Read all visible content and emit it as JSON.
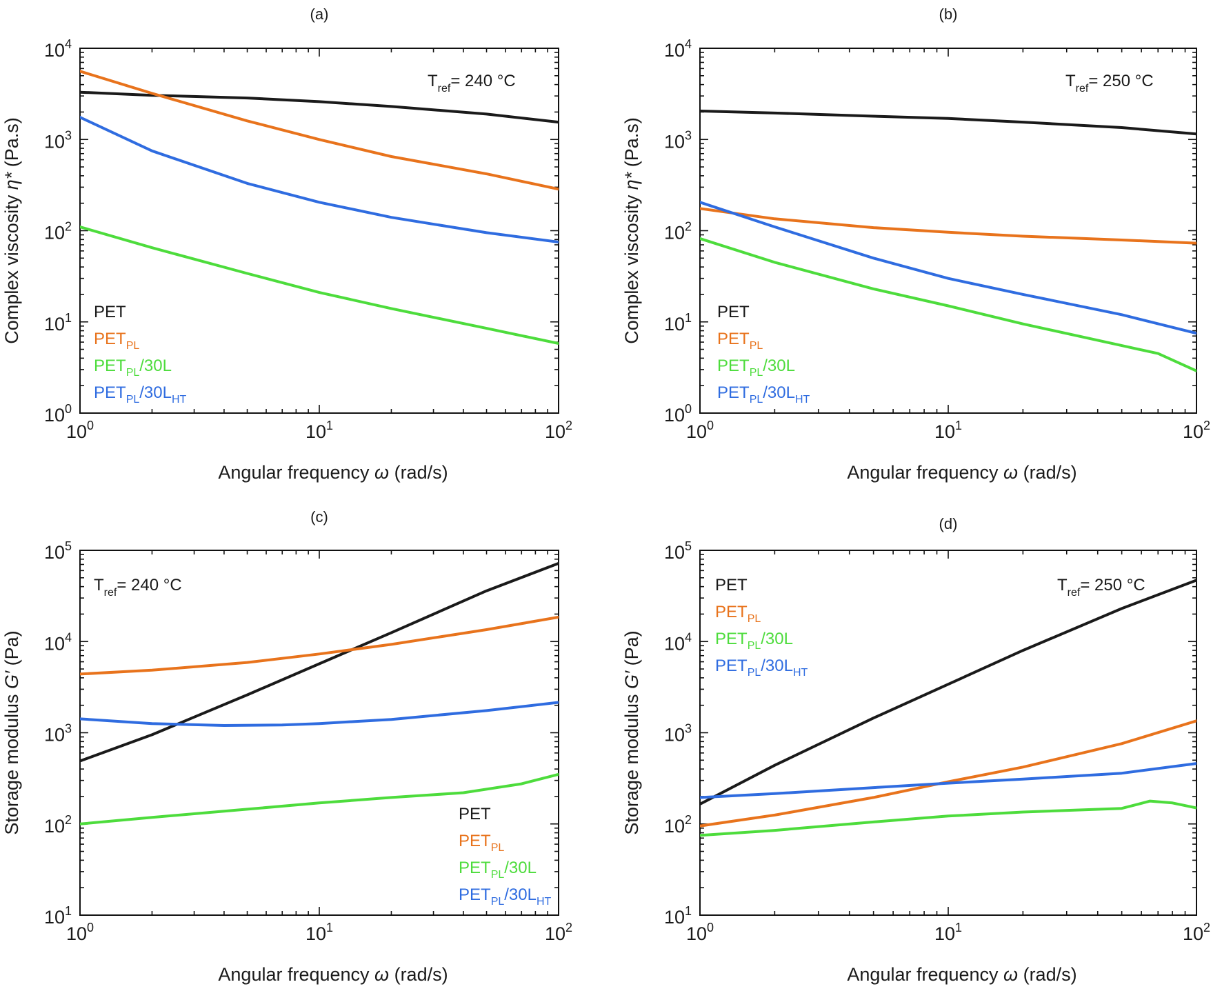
{
  "colors": {
    "PET": "#1a1a1a",
    "PET_PL": "#e8731c",
    "PET_PL_30L": "#4ddc3c",
    "PET_PL_30L_HT": "#2f6ce0"
  },
  "chart_data": [
    {
      "type": "line",
      "panel_label": "(a)",
      "xlabel": "Angular frequency",
      "xlabel_symbol": "ω",
      "xlabel_unit": "(rad/s)",
      "ylabel": "Complex viscosity",
      "ylabel_symbol": "η*",
      "ylabel_unit": "(Pa.s)",
      "x_scale": "log",
      "y_scale": "log",
      "xlim": [
        1,
        100
      ],
      "ylim": [
        1,
        10000
      ],
      "x_ticks": [
        {
          "base": "10",
          "exp": "0"
        },
        {
          "base": "10",
          "exp": "1"
        },
        {
          "base": "10",
          "exp": "2"
        }
      ],
      "y_ticks": [
        {
          "base": "10",
          "exp": "0"
        },
        {
          "base": "10",
          "exp": "1"
        },
        {
          "base": "10",
          "exp": "2"
        },
        {
          "base": "10",
          "exp": "3"
        },
        {
          "base": "10",
          "exp": "4"
        }
      ],
      "tref": {
        "label": "T",
        "sub": "ref",
        "value": "= 240 °C"
      },
      "legend_position": "bottom-left",
      "series": [
        {
          "name": "PET",
          "name_sub": "",
          "name_tail": "",
          "name_tail_sub": "",
          "color_key": "PET",
          "x": [
            1,
            2,
            5,
            10,
            20,
            50,
            100
          ],
          "y": [
            3300,
            3050,
            2850,
            2600,
            2300,
            1900,
            1550
          ]
        },
        {
          "name": "PET",
          "name_sub": "PL",
          "name_tail": "",
          "name_tail_sub": "",
          "color_key": "PET_PL",
          "x": [
            1,
            2,
            5,
            10,
            20,
            50,
            100
          ],
          "y": [
            5600,
            3200,
            1600,
            1000,
            650,
            420,
            285
          ]
        },
        {
          "name": "PET",
          "name_sub": "PL",
          "name_tail": "/30L",
          "name_tail_sub": "",
          "color_key": "PET_PL_30L",
          "x": [
            1,
            2,
            5,
            10,
            20,
            50,
            100
          ],
          "y": [
            110,
            65,
            34,
            21,
            14,
            8.5,
            5.8
          ]
        },
        {
          "name": "PET",
          "name_sub": "PL",
          "name_tail": "/30L",
          "name_tail_sub": "HT",
          "color_key": "PET_PL_30L_HT",
          "x": [
            1,
            2,
            5,
            10,
            20,
            50,
            100
          ],
          "y": [
            1750,
            750,
            330,
            205,
            140,
            95,
            75
          ]
        }
      ]
    },
    {
      "type": "line",
      "panel_label": "(b)",
      "xlabel": "Angular frequency",
      "xlabel_symbol": "ω",
      "xlabel_unit": "(rad/s)",
      "ylabel": "Complex viscosity",
      "ylabel_symbol": "η*",
      "ylabel_unit": "(Pa.s)",
      "x_scale": "log",
      "y_scale": "log",
      "xlim": [
        1,
        100
      ],
      "ylim": [
        1,
        10000
      ],
      "x_ticks": [
        {
          "base": "10",
          "exp": "0"
        },
        {
          "base": "10",
          "exp": "1"
        },
        {
          "base": "10",
          "exp": "2"
        }
      ],
      "y_ticks": [
        {
          "base": "10",
          "exp": "0"
        },
        {
          "base": "10",
          "exp": "1"
        },
        {
          "base": "10",
          "exp": "2"
        },
        {
          "base": "10",
          "exp": "3"
        },
        {
          "base": "10",
          "exp": "4"
        }
      ],
      "tref": {
        "label": "T",
        "sub": "ref",
        "value": "= 250 °C"
      },
      "legend_position": "bottom-left",
      "series": [
        {
          "name": "PET",
          "name_sub": "",
          "name_tail": "",
          "name_tail_sub": "",
          "color_key": "PET",
          "x": [
            1,
            2,
            5,
            10,
            20,
            50,
            100
          ],
          "y": [
            2050,
            1950,
            1800,
            1700,
            1550,
            1350,
            1150
          ]
        },
        {
          "name": "PET",
          "name_sub": "PL",
          "name_tail": "",
          "name_tail_sub": "",
          "color_key": "PET_PL",
          "x": [
            1,
            2,
            5,
            10,
            20,
            50,
            100
          ],
          "y": [
            175,
            135,
            108,
            96,
            87,
            79,
            73
          ]
        },
        {
          "name": "PET",
          "name_sub": "PL",
          "name_tail": "/30L",
          "name_tail_sub": "",
          "color_key": "PET_PL_30L",
          "x": [
            1,
            2,
            5,
            10,
            20,
            50,
            70,
            100
          ],
          "y": [
            82,
            45,
            23,
            15,
            9.5,
            5.5,
            4.5,
            2.9
          ]
        },
        {
          "name": "PET",
          "name_sub": "PL",
          "name_tail": "/30L",
          "name_tail_sub": "HT",
          "color_key": "PET_PL_30L_HT",
          "x": [
            1,
            2,
            5,
            10,
            20,
            50,
            100
          ],
          "y": [
            205,
            110,
            50,
            30,
            20,
            12,
            7.5
          ]
        }
      ]
    },
    {
      "type": "line",
      "panel_label": "(c)",
      "xlabel": "Angular frequency",
      "xlabel_symbol": "ω",
      "xlabel_unit": "(rad/s)",
      "ylabel": "Storage modulus",
      "ylabel_symbol": "G′",
      "ylabel_unit": "(Pa)",
      "x_scale": "log",
      "y_scale": "log",
      "xlim": [
        1,
        100
      ],
      "ylim": [
        10,
        100000
      ],
      "x_ticks": [
        {
          "base": "10",
          "exp": "0"
        },
        {
          "base": "10",
          "exp": "1"
        },
        {
          "base": "10",
          "exp": "2"
        }
      ],
      "y_ticks": [
        {
          "base": "10",
          "exp": "1"
        },
        {
          "base": "10",
          "exp": "2"
        },
        {
          "base": "10",
          "exp": "3"
        },
        {
          "base": "10",
          "exp": "4"
        },
        {
          "base": "10",
          "exp": "5"
        }
      ],
      "tref": {
        "label": "T",
        "sub": "ref",
        "value": "= 240 °C"
      },
      "legend_position": "bottom-right",
      "series": [
        {
          "name": "PET",
          "name_sub": "",
          "name_tail": "",
          "name_tail_sub": "",
          "color_key": "PET",
          "x": [
            1,
            2,
            5,
            10,
            20,
            50,
            100
          ],
          "y": [
            490,
            950,
            2600,
            5700,
            12500,
            36000,
            72000
          ]
        },
        {
          "name": "PET",
          "name_sub": "PL",
          "name_tail": "",
          "name_tail_sub": "",
          "color_key": "PET_PL",
          "x": [
            1,
            2,
            5,
            10,
            20,
            50,
            100
          ],
          "y": [
            4400,
            4850,
            5900,
            7300,
            9300,
            13500,
            18500
          ]
        },
        {
          "name": "PET",
          "name_sub": "PL",
          "name_tail": "/30L",
          "name_tail_sub": "",
          "color_key": "PET_PL_30L",
          "x": [
            1,
            2,
            5,
            10,
            20,
            40,
            70,
            100
          ],
          "y": [
            100,
            118,
            145,
            170,
            195,
            220,
            275,
            350
          ]
        },
        {
          "name": "PET",
          "name_sub": "PL",
          "name_tail": "/30L",
          "name_tail_sub": "HT",
          "color_key": "PET_PL_30L_HT",
          "x": [
            1,
            2,
            4,
            7,
            10,
            20,
            50,
            100
          ],
          "y": [
            1420,
            1260,
            1200,
            1215,
            1260,
            1400,
            1750,
            2150
          ]
        }
      ]
    },
    {
      "type": "line",
      "panel_label": "(d)",
      "xlabel": "Angular frequency",
      "xlabel_symbol": "ω",
      "xlabel_unit": "(rad/s)",
      "ylabel": "Storage modulus",
      "ylabel_symbol": "G′",
      "ylabel_unit": "(Pa)",
      "x_scale": "log",
      "y_scale": "log",
      "xlim": [
        1,
        100
      ],
      "ylim": [
        10,
        100000
      ],
      "x_ticks": [
        {
          "base": "10",
          "exp": "0"
        },
        {
          "base": "10",
          "exp": "1"
        },
        {
          "base": "10",
          "exp": "2"
        }
      ],
      "y_ticks": [
        {
          "base": "10",
          "exp": "1"
        },
        {
          "base": "10",
          "exp": "2"
        },
        {
          "base": "10",
          "exp": "3"
        },
        {
          "base": "10",
          "exp": "4"
        },
        {
          "base": "10",
          "exp": "5"
        }
      ],
      "tref": {
        "label": "T",
        "sub": "ref",
        "value": "= 250 °C"
      },
      "legend_position": "top-left",
      "series": [
        {
          "name": "PET",
          "name_sub": "",
          "name_tail": "",
          "name_tail_sub": "",
          "color_key": "PET",
          "x": [
            1,
            2,
            5,
            10,
            20,
            50,
            100
          ],
          "y": [
            165,
            440,
            1450,
            3400,
            8000,
            23000,
            47000
          ]
        },
        {
          "name": "PET",
          "name_sub": "PL",
          "name_tail": "",
          "name_tail_sub": "",
          "color_key": "PET_PL",
          "x": [
            1,
            2,
            5,
            10,
            20,
            50,
            100
          ],
          "y": [
            95,
            125,
            195,
            290,
            420,
            760,
            1350
          ]
        },
        {
          "name": "PET",
          "name_sub": "PL",
          "name_tail": "/30L",
          "name_tail_sub": "",
          "color_key": "PET_PL_30L",
          "x": [
            1,
            2,
            5,
            10,
            20,
            50,
            65,
            80,
            100
          ],
          "y": [
            75,
            85,
            105,
            122,
            135,
            148,
            178,
            170,
            150
          ]
        },
        {
          "name": "PET",
          "name_sub": "PL",
          "name_tail": "/30L",
          "name_tail_sub": "HT",
          "color_key": "PET_PL_30L_HT",
          "x": [
            1,
            2,
            5,
            10,
            20,
            50,
            100
          ],
          "y": [
            195,
            215,
            250,
            280,
            310,
            360,
            460
          ]
        }
      ]
    }
  ]
}
